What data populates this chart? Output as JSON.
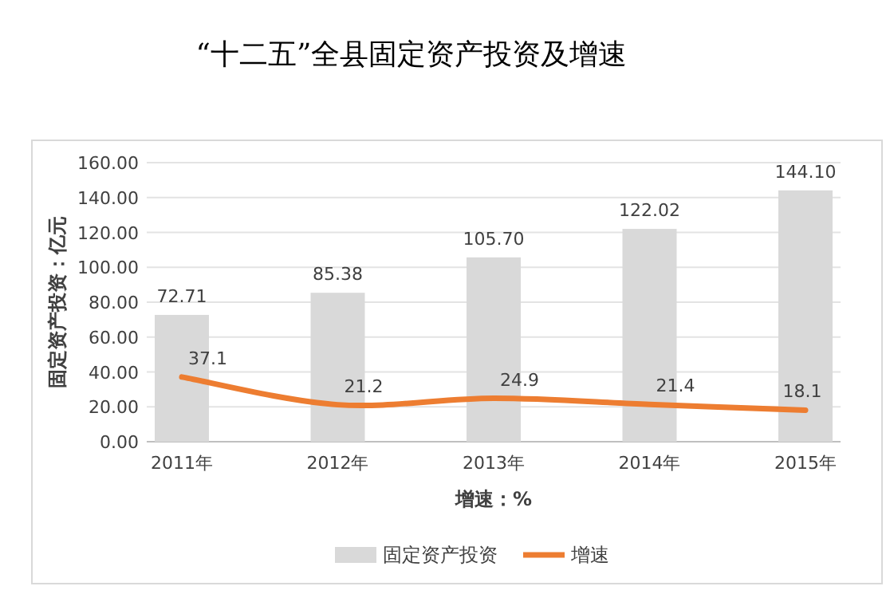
{
  "chart_data": {
    "type": "bar",
    "title": "“十二五”全县固定资产投资及增速",
    "xlabel": "增速：%",
    "ylabel": "固定资产投资：亿元",
    "categories": [
      "2011年",
      "2012年",
      "2013年",
      "2014年",
      "2015年"
    ],
    "series": [
      {
        "name": "固定资产投资",
        "color": "#d9d9d9",
        "values": [
          72.71,
          85.38,
          105.7,
          122.02,
          144.1
        ],
        "value_labels": [
          "72.71",
          "85.38",
          "105.70",
          "122.02",
          "144.10"
        ]
      },
      {
        "name": "增速",
        "type": "line",
        "color": "#ed7d31",
        "values": [
          37.1,
          21.2,
          24.9,
          21.4,
          18.1
        ],
        "value_labels": [
          "37.1",
          "21.2",
          "24.9",
          "21.4",
          "18.1"
        ]
      }
    ],
    "ylim": [
      0,
      160
    ],
    "yticks": [
      {
        "value": 0,
        "label": "0.00"
      },
      {
        "value": 20,
        "label": "20.00"
      },
      {
        "value": 40,
        "label": "40.00"
      },
      {
        "value": 60,
        "label": "60.00"
      },
      {
        "value": 80,
        "label": "80.00"
      },
      {
        "value": 100,
        "label": "100.00"
      },
      {
        "value": 120,
        "label": "120.00"
      },
      {
        "value": 140,
        "label": "140.00"
      },
      {
        "value": 160,
        "label": "160.00"
      }
    ],
    "grid": "y",
    "legend": "bottom",
    "marker": "none",
    "line_style": "solid"
  }
}
